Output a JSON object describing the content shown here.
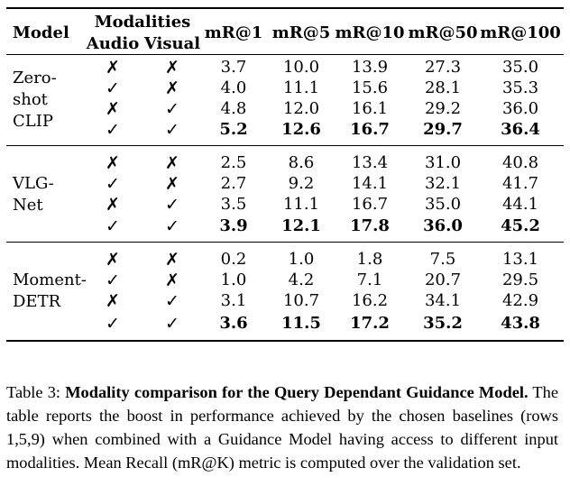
{
  "table": {
    "headers": {
      "model": "Model",
      "modalities": "Modalities",
      "audio": "Audio",
      "visual": "Visual",
      "metrics": [
        "mR@1",
        "mR@5",
        "mR@10",
        "mR@50",
        "mR@100"
      ]
    },
    "groups": [
      {
        "model_lines": [
          "Zero-",
          "shot",
          "CLIP"
        ],
        "rows": [
          {
            "audio": "✗",
            "visual": "✗",
            "values": [
              "3.7",
              "10.0",
              "13.9",
              "27.3",
              "35.0"
            ],
            "bold": false
          },
          {
            "audio": "✓",
            "visual": "✗",
            "values": [
              "4.0",
              "11.1",
              "15.6",
              "28.1",
              "35.3"
            ],
            "bold": false
          },
          {
            "audio": "✗",
            "visual": "✓",
            "values": [
              "4.8",
              "12.0",
              "16.1",
              "29.2",
              "36.0"
            ],
            "bold": false
          },
          {
            "audio": "✓",
            "visual": "✓",
            "values": [
              "5.2",
              "12.6",
              "16.7",
              "29.7",
              "36.4"
            ],
            "bold": true
          }
        ]
      },
      {
        "model_lines": [
          "VLG-",
          "Net"
        ],
        "rows": [
          {
            "audio": "✗",
            "visual": "✗",
            "values": [
              "2.5",
              "8.6",
              "13.4",
              "31.0",
              "40.8"
            ],
            "bold": false
          },
          {
            "audio": "✓",
            "visual": "✗",
            "values": [
              "2.7",
              "9.2",
              "14.1",
              "32.1",
              "41.7"
            ],
            "bold": false
          },
          {
            "audio": "✗",
            "visual": "✓",
            "values": [
              "3.5",
              "11.1",
              "16.7",
              "35.0",
              "44.1"
            ],
            "bold": false
          },
          {
            "audio": "✓",
            "visual": "✓",
            "values": [
              "3.9",
              "12.1",
              "17.8",
              "36.0",
              "45.2"
            ],
            "bold": true
          }
        ]
      },
      {
        "model_lines": [
          "Moment-",
          "DETR"
        ],
        "rows": [
          {
            "audio": "✗",
            "visual": "✗",
            "values": [
              "0.2",
              "1.0",
              "1.8",
              "7.5",
              "13.1"
            ],
            "bold": false
          },
          {
            "audio": "✓",
            "visual": "✗",
            "values": [
              "1.0",
              "4.2",
              "7.1",
              "20.7",
              "29.5"
            ],
            "bold": false
          },
          {
            "audio": "✗",
            "visual": "✓",
            "values": [
              "3.1",
              "10.7",
              "16.2",
              "34.1",
              "42.9"
            ],
            "bold": false
          },
          {
            "audio": "✓",
            "visual": "✓",
            "values": [
              "3.6",
              "11.5",
              "17.2",
              "35.2",
              "43.8"
            ],
            "bold": true
          }
        ]
      }
    ]
  },
  "caption": {
    "label": "Table 3:",
    "title": "Modality comparison for the Query Dependant Guidance Model.",
    "body": "The table reports the boost in performance achieved by the chosen baselines (rows 1,5,9) when combined with a Guidance Model having access to different input modalities. Mean Recall (mR@K) metric is computed over the validation set."
  }
}
